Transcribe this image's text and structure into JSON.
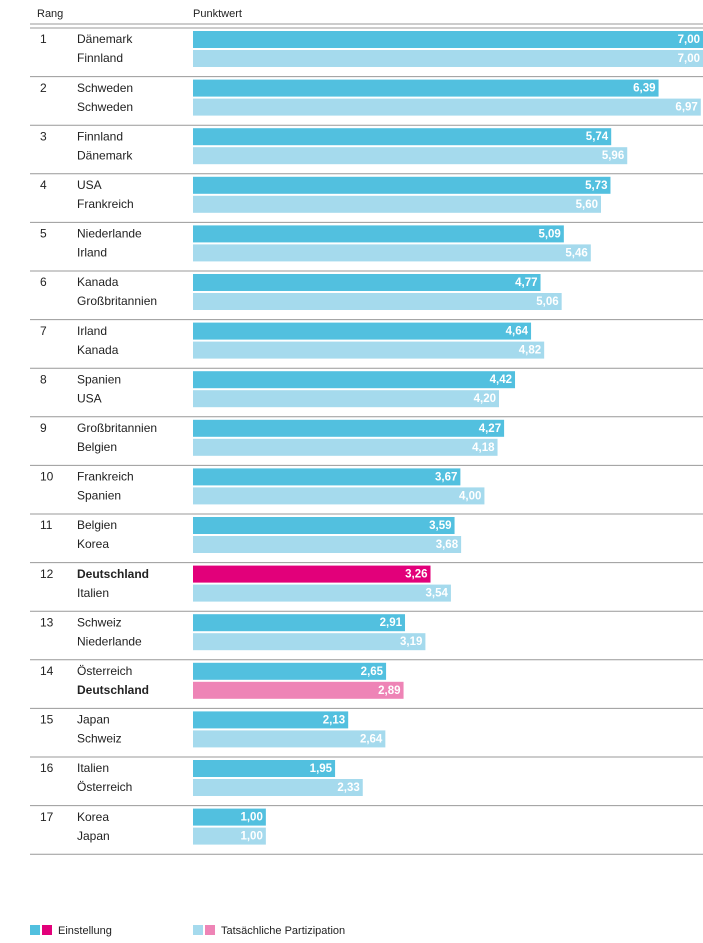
{
  "chart_data": {
    "type": "paired-bar",
    "rank_header": "Rang",
    "value_header": "Punktwert",
    "ranks": [
      "1",
      "2",
      "3",
      "4",
      "5",
      "6",
      "7",
      "8",
      "9",
      "10",
      "11",
      "12",
      "13",
      "14",
      "15",
      "16",
      "17"
    ],
    "xlim": [
      0,
      7
    ],
    "highlight": "Deutschland",
    "series": [
      {
        "name": "Einstellung",
        "color": "#52c0df",
        "highlight_color": "#e2007a",
        "categories": [
          "Dänemark",
          "Schweden",
          "Finnland",
          "USA",
          "Niederlande",
          "Kanada",
          "Irland",
          "Spanien",
          "Großbritannien",
          "Frankreich",
          "Belgien",
          "Deutschland",
          "Schweiz",
          "Österreich",
          "Japan",
          "Italien",
          "Korea"
        ],
        "values": [
          7.0,
          6.39,
          5.74,
          5.73,
          5.09,
          4.77,
          4.64,
          4.42,
          4.27,
          3.67,
          3.59,
          3.26,
          2.91,
          2.65,
          2.13,
          1.95,
          1.0
        ],
        "value_labels": [
          "7,00",
          "6,39",
          "5,74",
          "5,73",
          "5,09",
          "4,77",
          "4,64",
          "4,42",
          "4,27",
          "3,67",
          "3,59",
          "3,26",
          "2,91",
          "2,65",
          "2,13",
          "1,95",
          "1,00"
        ]
      },
      {
        "name": "Tatsächliche Partizipation",
        "color": "#a5daed",
        "highlight_color": "#ee84b6",
        "categories": [
          "Finnland",
          "Schweden",
          "Dänemark",
          "Frankreich",
          "Irland",
          "Großbritannien",
          "Kanada",
          "USA",
          "Belgien",
          "Spanien",
          "Korea",
          "Italien",
          "Niederlande",
          "Deutschland",
          "Schweiz",
          "Österreich",
          "Japan"
        ],
        "values": [
          7.0,
          6.97,
          5.96,
          5.6,
          5.46,
          5.06,
          4.82,
          4.2,
          4.18,
          4.0,
          3.68,
          3.54,
          3.19,
          2.89,
          2.64,
          2.33,
          1.0
        ],
        "value_labels": [
          "7,00",
          "6,97",
          "5,96",
          "5,60",
          "5,46",
          "5,06",
          "4,82",
          "4,20",
          "4,18",
          "4,00",
          "3,68",
          "3,54",
          "3,19",
          "2,89",
          "2,64",
          "2,33",
          "1,00"
        ]
      }
    ]
  }
}
